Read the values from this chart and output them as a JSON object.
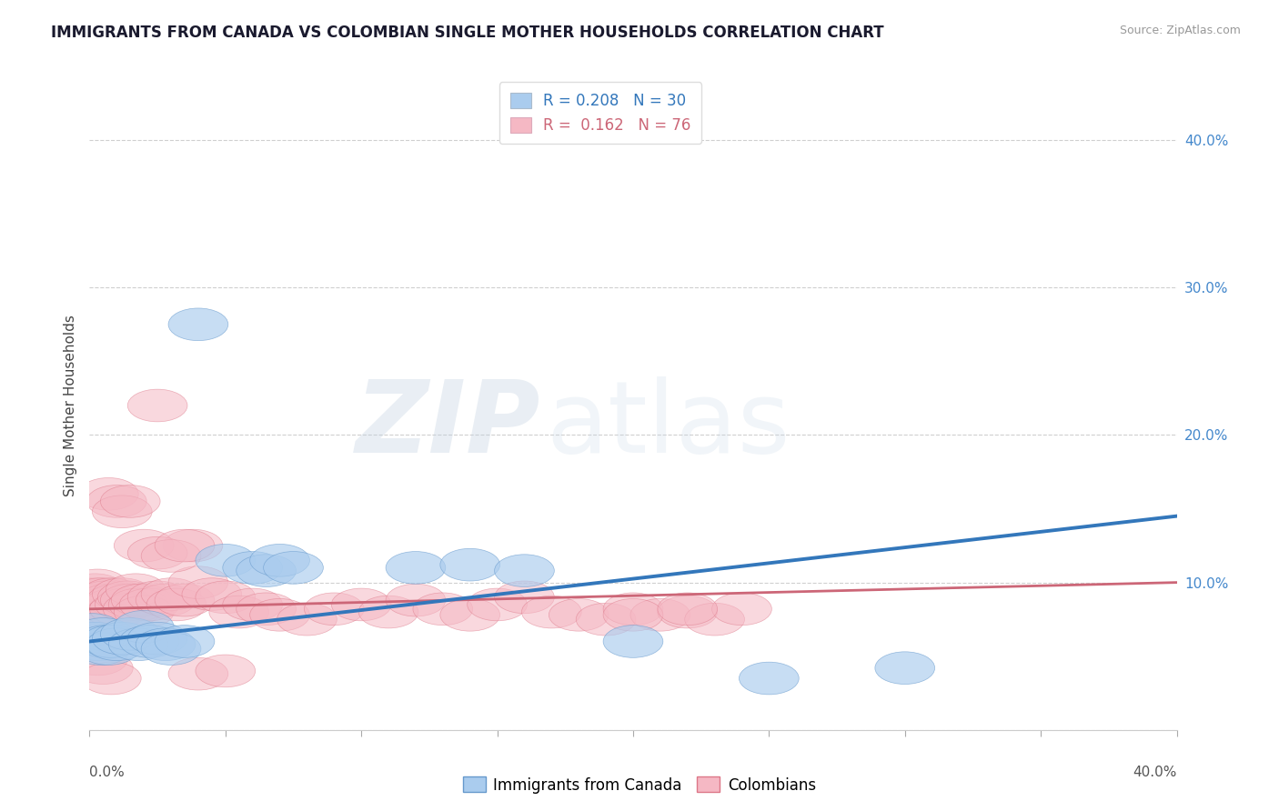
{
  "title": "IMMIGRANTS FROM CANADA VS COLOMBIAN SINGLE MOTHER HOUSEHOLDS CORRELATION CHART",
  "source": "Source: ZipAtlas.com",
  "ylabel": "Single Mother Households",
  "xlim": [
    0.0,
    0.4
  ],
  "ylim": [
    0.0,
    0.44
  ],
  "yticks": [
    0.0,
    0.1,
    0.2,
    0.3,
    0.4
  ],
  "ytick_labels": [
    "",
    "10.0%",
    "20.0%",
    "30.0%",
    "40.0%"
  ],
  "series1_name": "Immigrants from Canada",
  "series1_color": "#aaccee",
  "series1_edge_color": "#6699cc",
  "series1_line_color": "#3377bb",
  "series1_R": 0.208,
  "series1_N": 30,
  "series2_name": "Colombians",
  "series2_color": "#f5b8c4",
  "series2_edge_color": "#dd7788",
  "series2_line_color": "#cc6677",
  "series2_R": 0.162,
  "series2_N": 76,
  "background_color": "#ffffff",
  "grid_color": "#bbbbbb",
  "canada_x": [
    0.001,
    0.002,
    0.003,
    0.004,
    0.005,
    0.006,
    0.007,
    0.008,
    0.01,
    0.012,
    0.015,
    0.018,
    0.02,
    0.022,
    0.025,
    0.028,
    0.03,
    0.035,
    0.04,
    0.05,
    0.06,
    0.065,
    0.07,
    0.075,
    0.12,
    0.14,
    0.16,
    0.2,
    0.25,
    0.3
  ],
  "canada_y": [
    0.068,
    0.062,
    0.058,
    0.055,
    0.065,
    0.06,
    0.055,
    0.06,
    0.058,
    0.062,
    0.065,
    0.058,
    0.07,
    0.06,
    0.062,
    0.058,
    0.055,
    0.06,
    0.275,
    0.115,
    0.11,
    0.108,
    0.115,
    0.11,
    0.11,
    0.112,
    0.108,
    0.06,
    0.035,
    0.042
  ],
  "colombia_x": [
    0.001,
    0.001,
    0.002,
    0.002,
    0.003,
    0.003,
    0.004,
    0.004,
    0.005,
    0.005,
    0.006,
    0.006,
    0.007,
    0.007,
    0.008,
    0.008,
    0.009,
    0.01,
    0.01,
    0.011,
    0.012,
    0.013,
    0.014,
    0.015,
    0.016,
    0.017,
    0.018,
    0.019,
    0.02,
    0.022,
    0.025,
    0.028,
    0.03,
    0.032,
    0.035,
    0.038,
    0.04,
    0.045,
    0.05,
    0.055,
    0.06,
    0.065,
    0.07,
    0.08,
    0.09,
    0.1,
    0.11,
    0.12,
    0.13,
    0.14,
    0.15,
    0.16,
    0.17,
    0.18,
    0.19,
    0.2,
    0.21,
    0.22,
    0.23,
    0.24,
    0.007,
    0.01,
    0.012,
    0.015,
    0.02,
    0.025,
    0.03,
    0.035,
    0.04,
    0.05,
    0.003,
    0.005,
    0.008,
    0.2,
    0.22,
    0.025
  ],
  "colombia_y": [
    0.082,
    0.092,
    0.085,
    0.095,
    0.088,
    0.098,
    0.08,
    0.092,
    0.085,
    0.078,
    0.082,
    0.09,
    0.075,
    0.088,
    0.092,
    0.078,
    0.085,
    0.088,
    0.08,
    0.082,
    0.092,
    0.085,
    0.09,
    0.088,
    0.082,
    0.095,
    0.085,
    0.088,
    0.08,
    0.085,
    0.09,
    0.088,
    0.092,
    0.085,
    0.088,
    0.125,
    0.1,
    0.092,
    0.09,
    0.08,
    0.085,
    0.082,
    0.078,
    0.075,
    0.082,
    0.085,
    0.08,
    0.088,
    0.082,
    0.078,
    0.085,
    0.09,
    0.08,
    0.078,
    0.075,
    0.082,
    0.078,
    0.08,
    0.075,
    0.082,
    0.16,
    0.155,
    0.148,
    0.155,
    0.125,
    0.12,
    0.118,
    0.125,
    0.038,
    0.04,
    0.048,
    0.042,
    0.035,
    0.078,
    0.082,
    0.22
  ]
}
